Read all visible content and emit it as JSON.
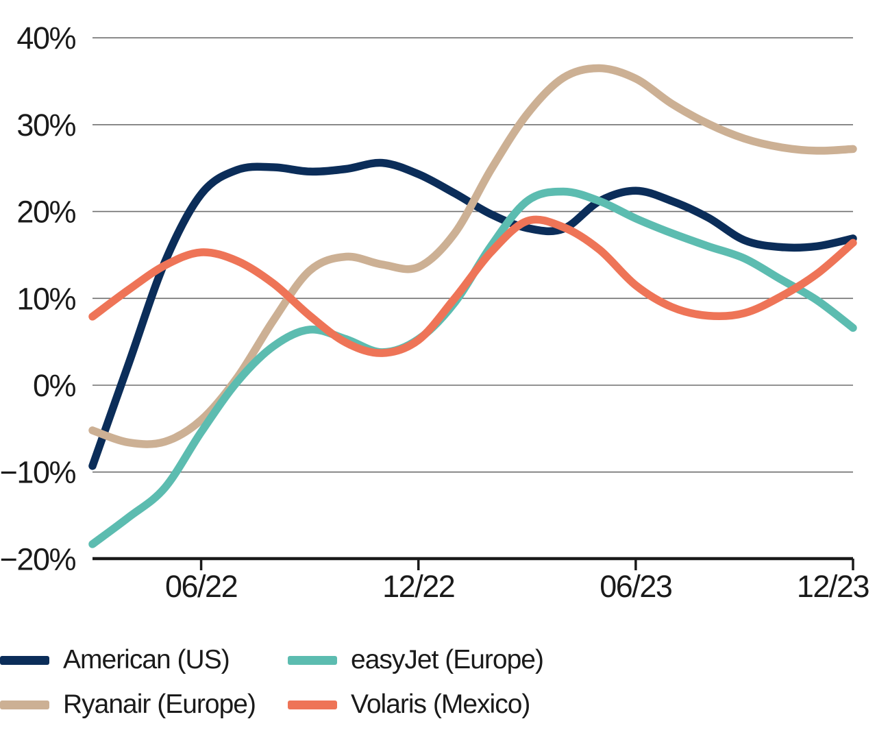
{
  "chart_data": {
    "type": "line",
    "title": "",
    "xlabel": "",
    "ylabel": "",
    "x": [
      "03/22",
      "04/22",
      "05/22",
      "06/22",
      "07/22",
      "08/22",
      "09/22",
      "10/22",
      "11/22",
      "12/22",
      "01/23",
      "02/23",
      "03/23",
      "04/23",
      "05/23",
      "06/23",
      "07/23",
      "08/23",
      "09/23",
      "10/23",
      "11/23",
      "12/23"
    ],
    "x_axis": {
      "tick_labels": [
        "06/22",
        "12/22",
        "06/23",
        "12/23"
      ],
      "tick_indices": [
        3,
        9,
        15,
        21
      ]
    },
    "y_axis": {
      "tick_labels": [
        "40%",
        "30%",
        "20%",
        "10%",
        "0%",
        "−10%",
        "−20%"
      ],
      "tick_values": [
        40,
        30,
        20,
        10,
        0,
        -10,
        -20
      ],
      "unit": "%",
      "range": [
        -20,
        40
      ]
    },
    "grid": true,
    "legend_position": "bottom",
    "series": [
      {
        "name": "American (US)",
        "color": "#0b2d59",
        "values": [
          -9.3,
          2.5,
          14.2,
          22.0,
          24.8,
          25.1,
          24.6,
          24.9,
          25.6,
          24.3,
          22.1,
          19.7,
          18.1,
          18.0,
          21.2,
          22.4,
          21.2,
          19.3,
          16.7,
          15.9,
          16.0,
          16.9
        ]
      },
      {
        "name": "Ryanair (Europe)",
        "color": "#ccb094",
        "values": [
          -5.2,
          -6.6,
          -6.5,
          -4.0,
          0.9,
          7.5,
          13.2,
          14.8,
          13.9,
          13.6,
          17.5,
          24.8,
          31.2,
          35.4,
          36.5,
          35.3,
          32.4,
          30.1,
          28.4,
          27.4,
          27.0,
          27.2
        ]
      },
      {
        "name": "easyJet (Europe)",
        "color": "#5cbcb0",
        "values": [
          -18.3,
          -15.2,
          -11.8,
          -5.4,
          0.4,
          4.5,
          6.4,
          5.3,
          3.8,
          5.3,
          9.5,
          16.0,
          21.2,
          22.3,
          21.2,
          19.2,
          17.5,
          16.0,
          14.6,
          12.2,
          9.8,
          6.6
        ]
      },
      {
        "name": "Volaris (Mexico)",
        "color": "#ee7457",
        "values": [
          7.9,
          11.0,
          13.8,
          15.3,
          14.3,
          11.7,
          8.0,
          4.9,
          3.7,
          5.2,
          10.0,
          15.3,
          18.9,
          18.2,
          15.6,
          11.5,
          9.0,
          8.0,
          8.3,
          10.2,
          12.8,
          16.4
        ]
      }
    ],
    "style": {
      "grid_color": "#6e6e6e",
      "axis_color": "#1a1a1a",
      "text_color": "#1a1a1a",
      "background": "#ffffff"
    }
  }
}
